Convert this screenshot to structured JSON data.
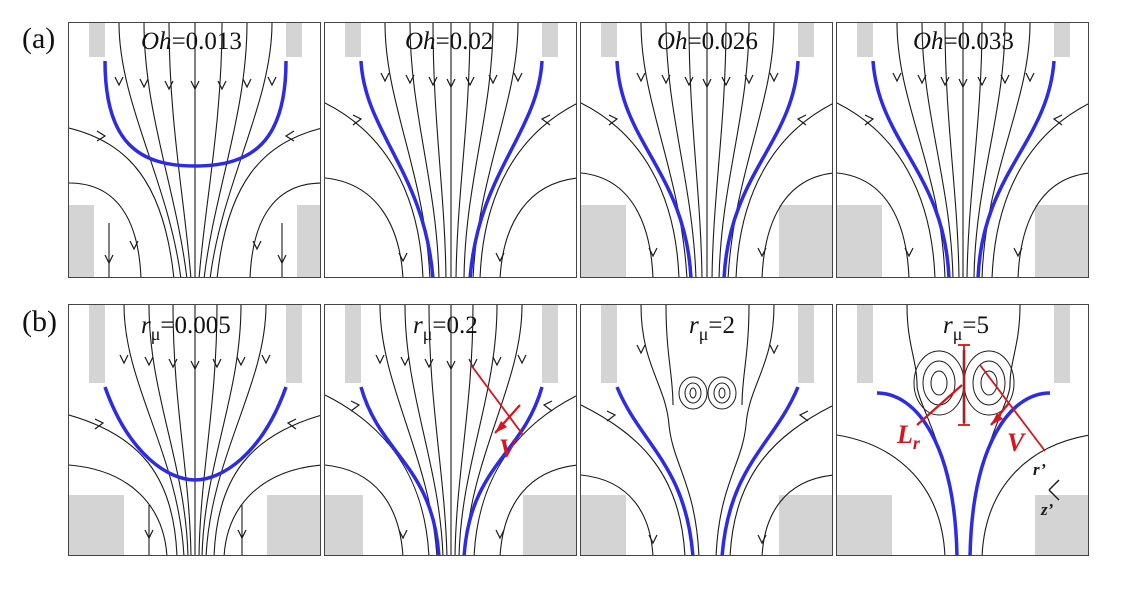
{
  "rows": [
    {
      "label": "(a)",
      "panels": [
        {
          "param_symbol": "Oh",
          "param_value": "=0.013"
        },
        {
          "param_symbol": "Oh",
          "param_value": "=0.02"
        },
        {
          "param_symbol": "Oh",
          "param_value": "=0.026"
        },
        {
          "param_symbol": "Oh",
          "param_value": "=0.033"
        }
      ]
    },
    {
      "label": "(b)",
      "panels": [
        {
          "param_symbol": "r",
          "param_sub": "μ",
          "param_value": "=0.005"
        },
        {
          "param_symbol": "r",
          "param_sub": "μ",
          "param_value": "=0.2"
        },
        {
          "param_symbol": "r",
          "param_sub": "μ",
          "param_value": "=2"
        },
        {
          "param_symbol": "r",
          "param_sub": "μ",
          "param_value": "=5"
        }
      ]
    }
  ],
  "annotations": {
    "velocity_label": "V",
    "recirculation_length_label": "L",
    "recirculation_length_sub": "r",
    "axis_r": "r’",
    "axis_z": "z’"
  },
  "colors": {
    "interface": "#2b2be8",
    "streamline": "#1a1a1a",
    "solid": "#d4d4d4",
    "annotation": "#d8141c"
  }
}
